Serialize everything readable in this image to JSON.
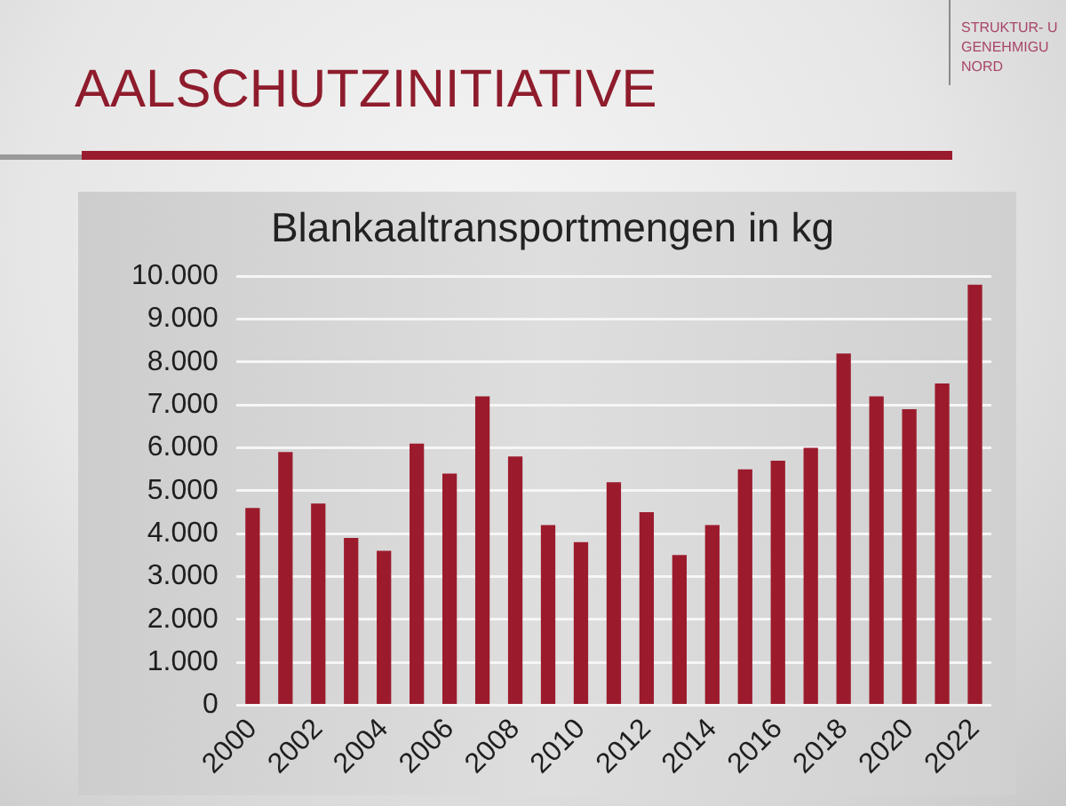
{
  "chart_data": {
    "type": "bar",
    "title": "AALSCHUTZINITIATIVE",
    "subtitle": "Blankaaltransportmengen in kg",
    "annotations": [
      "STRUKTUR- U\nGENEHMIGU\nNORD"
    ],
    "categories": [
      "2000",
      null,
      "2002",
      null,
      "2004",
      null,
      "2006",
      null,
      "2008",
      null,
      "2010",
      null,
      "2012",
      null,
      "2014",
      null,
      "2016",
      null,
      "2018",
      null,
      "2020",
      null,
      "2022"
    ],
    "values": [
      4600,
      5900,
      4700,
      3900,
      3600,
      6100,
      5400,
      7200,
      5800,
      4200,
      3800,
      5200,
      4500,
      3500,
      4200,
      5500,
      5700,
      6000,
      8200,
      7200,
      6900,
      7500,
      9800
    ],
    "color": "#9b1b2c",
    "ylim": [
      0,
      10000
    ],
    "yticks": [
      0,
      {
        "value": 1000,
        "label": "1.000"
      },
      {
        "value": 2000,
        "label": "2.000"
      },
      {
        "value": 3000,
        "label": "3.000"
      },
      {
        "value": 4000,
        "label": "4.000"
      },
      {
        "value": 5000,
        "label": "5.000"
      },
      {
        "value": 6000,
        "label": "6.000"
      },
      {
        "value": 7000,
        "label": "7.000"
      },
      {
        "value": 8000,
        "label": "8.000"
      },
      {
        "value": 9000,
        "label": "9.000"
      },
      {
        "value": 10000,
        "label": "10.000"
      }
    ],
    "grid": "y"
  }
}
